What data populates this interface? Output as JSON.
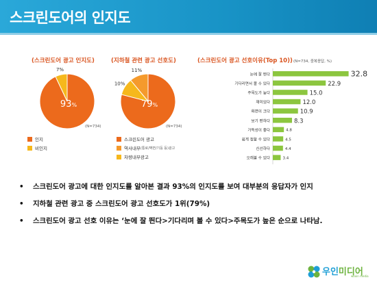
{
  "header": {
    "title": "스크린도어의 인지도"
  },
  "chart_data": [
    {
      "type": "pie",
      "title": "(스크린도어 광고 인지도)",
      "n_label": "(N=734)",
      "slices": [
        {
          "label": "인지",
          "value": 93,
          "display": "93",
          "unit": "%",
          "color": "#ec6a1c"
        },
        {
          "label": "비인지",
          "value": 7,
          "display": "7%",
          "color": "#f6b81c"
        }
      ]
    },
    {
      "type": "pie",
      "title": "(지하철 관련 광고 선호도)",
      "n_label": "(N=734)",
      "slices": [
        {
          "label": "스크린도어 광고",
          "value": 79,
          "display": "79",
          "unit": "%",
          "color": "#ec6a1c"
        },
        {
          "label": "역사내부",
          "sublabel": "(통로/벽면/기둥 등)광고",
          "value": 11,
          "display": "11%",
          "color": "#f59a2c"
        },
        {
          "label": "차량내부광고",
          "value": 10,
          "display": "10%",
          "color": "#f6b81c"
        }
      ]
    },
    {
      "type": "bar",
      "orientation": "horizontal",
      "title": "(스크린도어 광고 선호이유(Top 10))",
      "n_label": "(N=734, 중복응답, %)",
      "categories": [
        "눈에 잘 띈다",
        "기다리면서 볼 수 있다",
        "주목도가 높다",
        "재미있다",
        "화면이 크다",
        "보기 편하다",
        "가독성이 좋다",
        "쉽게 접할 수 있다",
        "신선하다",
        "오래볼 수 있다"
      ],
      "values": [
        32.8,
        22.9,
        15.0,
        12.0,
        10.9,
        8.3,
        4.8,
        4.5,
        4.4,
        3.4
      ],
      "value_labels": [
        "32.8",
        "22.9",
        "15.0",
        "12.0",
        "10.9",
        "8.3",
        "4.8",
        "4.5",
        "4.4",
        "3.4"
      ],
      "color": "#8cc63f",
      "xlim": [
        0,
        35
      ]
    }
  ],
  "bullets": [
    "스크린도어 광고에 대한 인지도를 알아본 결과 93%의 인지도를 보여 대부분의 응답자가 인지",
    "지하철 관련 광고 중 스크린도어 광고 선호도가 1위(79%)",
    "스크린도어 광고 선호 이유는 ‘눈에 잘 띈다>기다리며 볼 수 있다>주목도가  높은 순으로 나타남."
  ],
  "bullet_symbol": "•",
  "logo": {
    "text_part1": "우인",
    "text_part2": "미디어",
    "sub": "wooin media"
  }
}
